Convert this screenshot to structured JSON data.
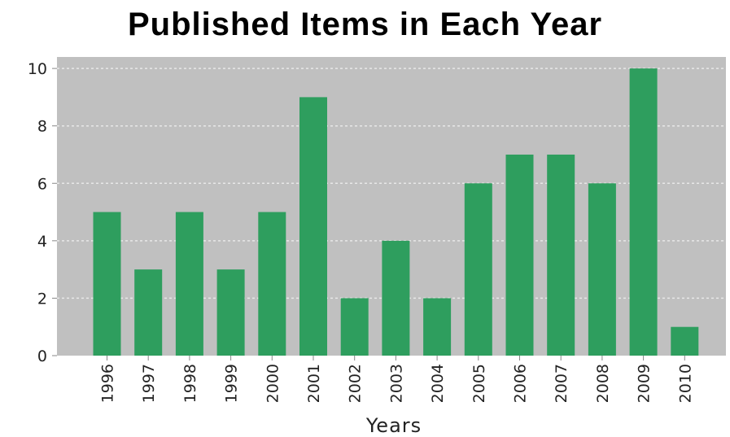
{
  "chart_data": {
    "type": "bar",
    "title": "Published Items in Each Year",
    "xlabel": "Years",
    "ylabel": "",
    "categories": [
      "1996",
      "1997",
      "1998",
      "1999",
      "2000",
      "2001",
      "2002",
      "2003",
      "2004",
      "2005",
      "2006",
      "2007",
      "2008",
      "2009",
      "2010"
    ],
    "values": [
      5,
      3,
      5,
      3,
      5,
      9,
      2,
      4,
      2,
      6,
      7,
      7,
      6,
      10,
      1
    ],
    "ylim": [
      0,
      10.4
    ],
    "yticks": [
      "0",
      "2",
      "4",
      "6",
      "8",
      "10"
    ],
    "grid": true,
    "colors": {
      "bar": "#2e9e5e",
      "plot_background": "#c0c0c0",
      "grid": "#e8e8e8"
    }
  }
}
